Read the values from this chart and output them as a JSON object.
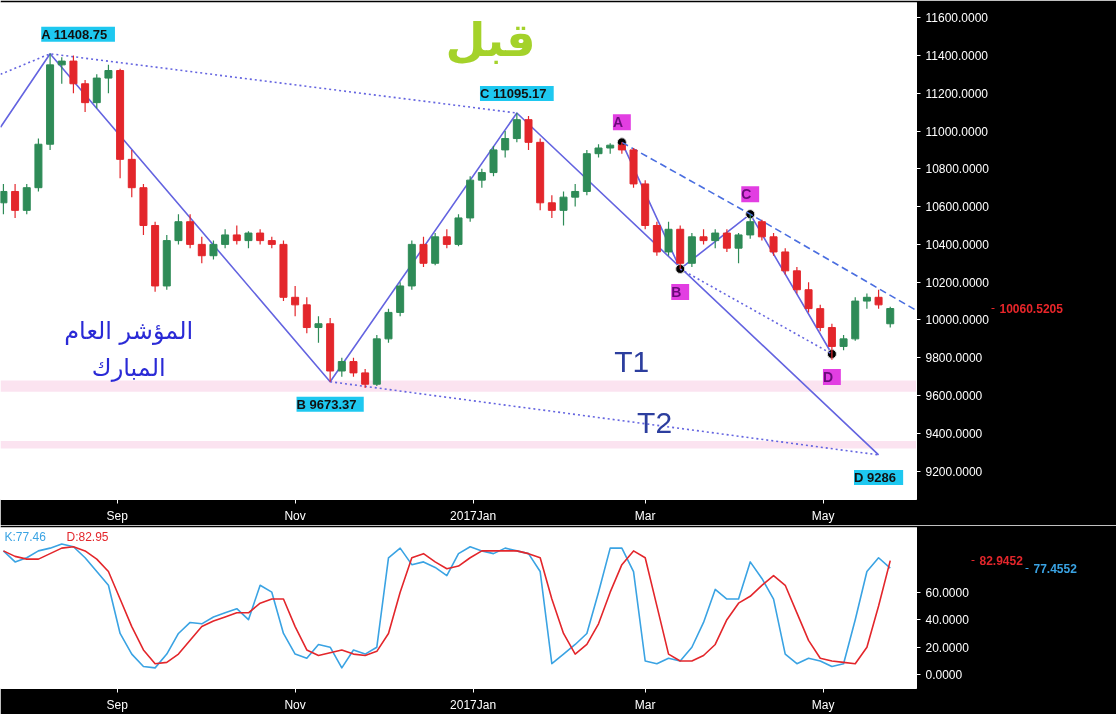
{
  "chart_data": [
    {
      "type": "candlestick",
      "x": [
        "2016-07-24",
        "2016-07-28",
        "2016-08-01",
        "2016-08-05",
        "2016-08-09",
        "2016-08-13",
        "2016-08-17",
        "2016-08-21",
        "2016-08-25",
        "2016-08-29",
        "2016-09-02",
        "2016-09-06",
        "2016-09-10",
        "2016-09-14",
        "2016-09-18",
        "2016-09-22",
        "2016-09-26",
        "2016-09-30",
        "2016-10-04",
        "2016-10-08",
        "2016-10-12",
        "2016-10-16",
        "2016-10-20",
        "2016-10-24",
        "2016-10-28",
        "2016-11-01",
        "2016-11-05",
        "2016-11-09",
        "2016-11-13",
        "2016-11-17",
        "2016-11-21",
        "2016-11-25",
        "2016-11-29",
        "2016-12-03",
        "2016-12-07",
        "2016-12-11",
        "2016-12-15",
        "2016-12-19",
        "2016-12-23",
        "2016-12-27",
        "2016-12-31",
        "2017-01-04",
        "2017-01-08",
        "2017-01-12",
        "2017-01-16",
        "2017-01-20",
        "2017-01-24",
        "2017-01-28",
        "2017-02-01",
        "2017-02-05",
        "2017-02-09",
        "2017-02-13",
        "2017-02-17",
        "2017-02-21",
        "2017-02-25",
        "2017-03-01",
        "2017-03-05",
        "2017-03-09",
        "2017-03-13",
        "2017-03-17",
        "2017-03-21",
        "2017-03-25",
        "2017-03-29",
        "2017-04-02",
        "2017-04-06",
        "2017-04-10",
        "2017-04-14",
        "2017-04-18",
        "2017-04-22",
        "2017-04-26",
        "2017-04-30",
        "2017-05-04",
        "2017-05-08",
        "2017-05-12",
        "2017-05-16",
        "2017-05-20",
        "2017-05-24"
      ],
      "ohlc": [
        [
          10620,
          10720,
          10560,
          10680
        ],
        [
          10680,
          10720,
          10540,
          10580
        ],
        [
          10580,
          10720,
          10560,
          10700
        ],
        [
          10700,
          10960,
          10680,
          10930
        ],
        [
          10930,
          11408.75,
          10900,
          11350
        ],
        [
          11350,
          11390,
          11250,
          11370
        ],
        [
          11370,
          11400,
          11200,
          11250
        ],
        [
          11250,
          11270,
          11100,
          11150
        ],
        [
          11150,
          11300,
          11120,
          11280
        ],
        [
          11280,
          11350,
          11200,
          11320
        ],
        [
          11320,
          11330,
          10750,
          10850
        ],
        [
          10850,
          10900,
          10650,
          10700
        ],
        [
          10700,
          10720,
          10450,
          10500
        ],
        [
          10500,
          10520,
          10150,
          10180
        ],
        [
          10180,
          10450,
          10160,
          10420
        ],
        [
          10420,
          10560,
          10400,
          10520
        ],
        [
          10520,
          10560,
          10380,
          10400
        ],
        [
          10400,
          10440,
          10300,
          10340
        ],
        [
          10340,
          10420,
          10320,
          10400
        ],
        [
          10400,
          10480,
          10380,
          10450
        ],
        [
          10450,
          10500,
          10400,
          10420
        ],
        [
          10420,
          10470,
          10380,
          10460
        ],
        [
          10460,
          10480,
          10400,
          10420
        ],
        [
          10420,
          10440,
          10380,
          10400
        ],
        [
          10400,
          10420,
          10100,
          10120
        ],
        [
          10120,
          10180,
          10020,
          10080
        ],
        [
          10080,
          10120,
          9930,
          9960
        ],
        [
          9960,
          10020,
          9880,
          9980
        ],
        [
          9980,
          10010,
          9673.37,
          9730
        ],
        [
          9730,
          9800,
          9700,
          9780
        ],
        [
          9780,
          9800,
          9700,
          9720
        ],
        [
          9720,
          9740,
          9640,
          9660
        ],
        [
          9660,
          9920,
          9650,
          9900
        ],
        [
          9900,
          10060,
          9880,
          10040
        ],
        [
          10040,
          10200,
          10020,
          10180
        ],
        [
          10180,
          10420,
          10160,
          10400
        ],
        [
          10400,
          10440,
          10280,
          10300
        ],
        [
          10300,
          10460,
          10290,
          10440
        ],
        [
          10440,
          10480,
          10380,
          10400
        ],
        [
          10400,
          10560,
          10390,
          10540
        ],
        [
          10540,
          10760,
          10520,
          10740
        ],
        [
          10740,
          10800,
          10700,
          10780
        ],
        [
          10780,
          10920,
          10760,
          10900
        ],
        [
          10900,
          11000,
          10860,
          10960
        ],
        [
          10960,
          11095.17,
          10940,
          11060
        ],
        [
          11060,
          11080,
          10900,
          10940
        ],
        [
          10940,
          10960,
          10580,
          10620
        ],
        [
          10620,
          10660,
          10540,
          10580
        ],
        [
          10580,
          10680,
          10500,
          10650
        ],
        [
          10650,
          10720,
          10600,
          10680
        ],
        [
          10680,
          10900,
          10660,
          10880
        ],
        [
          10880,
          10930,
          10860,
          10910
        ],
        [
          10910,
          10935,
          10880,
          10925
        ],
        [
          10925,
          10940,
          10880,
          10900
        ],
        [
          10900,
          10910,
          10700,
          10720
        ],
        [
          10720,
          10740,
          10480,
          10500
        ],
        [
          10500,
          10520,
          10340,
          10360
        ],
        [
          10360,
          10520,
          10340,
          10480
        ],
        [
          10480,
          10500,
          10270,
          10300
        ],
        [
          10300,
          10460,
          10280,
          10440
        ],
        [
          10440,
          10480,
          10400,
          10420
        ],
        [
          10420,
          10480,
          10380,
          10460
        ],
        [
          10460,
          10480,
          10360,
          10380
        ],
        [
          10380,
          10460,
          10300,
          10450
        ],
        [
          10450,
          10560,
          10430,
          10520
        ],
        [
          10520,
          10530,
          10420,
          10440
        ],
        [
          10440,
          10460,
          10340,
          10360
        ],
        [
          10360,
          10380,
          10240,
          10260
        ],
        [
          10260,
          10280,
          10140,
          10160
        ],
        [
          10160,
          10200,
          10040,
          10060
        ],
        [
          10060,
          10080,
          9940,
          9960
        ],
        [
          9960,
          9980,
          9790,
          9860
        ],
        [
          9860,
          9920,
          9840,
          9900
        ],
        [
          9900,
          10120,
          9890,
          10100
        ],
        [
          10100,
          10140,
          10060,
          10120
        ],
        [
          10120,
          10160,
          10060,
          10080
        ],
        [
          9980,
          10070,
          9960,
          10060.52
        ]
      ],
      "colors": [
        "#2e8b57",
        "#e3262b",
        "#2e8b57",
        "#2e8b57",
        "#2e8b57",
        "#2e8b57",
        "#e3262b",
        "#e3262b",
        "#2e8b57",
        "#2e8b57",
        "#e3262b",
        "#e3262b",
        "#e3262b",
        "#e3262b",
        "#2e8b57",
        "#2e8b57",
        "#e3262b",
        "#e3262b",
        "#2e8b57",
        "#2e8b57",
        "#e3262b",
        "#2e8b57",
        "#e3262b",
        "#e3262b",
        "#e3262b",
        "#e3262b",
        "#e3262b",
        "#2e8b57",
        "#e3262b",
        "#2e8b57",
        "#e3262b",
        "#e3262b",
        "#2e8b57",
        "#2e8b57",
        "#2e8b57",
        "#2e8b57",
        "#e3262b",
        "#2e8b57",
        "#e3262b",
        "#2e8b57",
        "#2e8b57",
        "#2e8b57",
        "#2e8b57",
        "#2e8b57",
        "#2e8b57",
        "#e3262b",
        "#e3262b",
        "#e3262b",
        "#2e8b57",
        "#2e8b57",
        "#2e8b57",
        "#2e8b57",
        "#2e8b57",
        "#e3262b",
        "#e3262b",
        "#e3262b",
        "#e3262b",
        "#2e8b57",
        "#e3262b",
        "#2e8b57",
        "#e3262b",
        "#2e8b57",
        "#e3262b",
        "#2e8b57",
        "#2e8b57",
        "#e3262b",
        "#e3262b",
        "#e3262b",
        "#e3262b",
        "#e3262b",
        "#e3262b",
        "#e3262b",
        "#2e8b57",
        "#2e8b57",
        "#2e8b57",
        "#e3262b",
        "#2e8b57"
      ],
      "series": [
        {
          "type": "line",
          "color": "#6464e0",
          "line_style": "solid",
          "x": [
            "2016-07-23",
            "2016-08-09",
            "2016-11-13",
            "2017-01-16",
            "2017-05-20"
          ],
          "values": [
            11020,
            11408.75,
            9673.37,
            11095.17,
            9286
          ]
        },
        {
          "type": "line",
          "color": "#6464e0",
          "line_style": "dotted",
          "x": [
            "2016-07-23",
            "2016-08-09",
            "2017-01-16"
          ],
          "values": [
            11300,
            11408.75,
            11095.17
          ]
        },
        {
          "type": "line",
          "color": "#6464e0",
          "line_style": "dotted",
          "x": [
            "2016-11-13",
            "2017-05-20"
          ],
          "values": [
            9673.37,
            9286
          ]
        },
        {
          "type": "line",
          "color": "#6464e0",
          "line_style": "solid",
          "marker": "circle",
          "x": [
            "2017-02-21",
            "2017-03-13",
            "2017-04-06",
            "2017-05-04"
          ],
          "values": [
            10940,
            10270,
            10560,
            9820
          ]
        },
        {
          "type": "line",
          "color": "#4a6ee0",
          "line_style": "dashed",
          "x": [
            "2017-02-21",
            "2017-04-06",
            "2017-06-02"
          ],
          "values": [
            10940,
            10560,
            10050
          ]
        },
        {
          "type": "line",
          "color": "#6464e0",
          "line_style": "dotted",
          "x": [
            "2017-03-13",
            "2017-05-04"
          ],
          "values": [
            10270,
            9820
          ]
        }
      ],
      "bands": [
        {
          "axis": "y",
          "from": 9620,
          "to": 9680,
          "label": "T1",
          "color": "#fbe0ee"
        },
        {
          "axis": "y",
          "from": 9320,
          "to": 9360,
          "label": "T2",
          "color": "#fbe0ee"
        }
      ],
      "annotations": [
        {
          "text": "A 11408.75",
          "x": "2016-08-09",
          "y": 11408.75
        },
        {
          "text": "B 9673.37",
          "x": "2016-11-13",
          "y": 9673.37
        },
        {
          "text": "C 11095.17",
          "x": "2017-01-16",
          "y": 11095.17
        },
        {
          "text": "D 9286",
          "x": "2017-05-20",
          "y": 9286
        },
        {
          "text": "A",
          "x": "2017-02-21",
          "y": 10940
        },
        {
          "text": "B",
          "x": "2017-03-13",
          "y": 10270
        },
        {
          "text": "C",
          "x": "2017-04-06",
          "y": 10560
        },
        {
          "text": "D",
          "x": "2017-05-04",
          "y": 9820
        },
        "قبل",
        "المؤشر العام",
        "المبارك",
        "10060.5205"
      ],
      "xlim": [
        "2016-07-23",
        "2017-06-02"
      ],
      "xticks": [
        {
          "value": "2016-09-01",
          "label": "Sep"
        },
        {
          "value": "2016-11-01",
          "label": "Nov"
        },
        {
          "value": "2017-01-01",
          "label": "2017Jan"
        },
        {
          "value": "2017-03-01",
          "label": "Mar"
        },
        {
          "value": "2017-05-01",
          "label": "May"
        }
      ],
      "ylim": [
        9050,
        11680
      ],
      "yticks": [
        {
          "value": 9200,
          "label": "9200.0000"
        },
        {
          "value": 9400,
          "label": "9400.0000"
        },
        {
          "value": 9600,
          "label": "9600.0000"
        },
        {
          "value": 9800,
          "label": "9800.0000"
        },
        {
          "value": 10000,
          "label": "10000.0000"
        },
        {
          "value": 10200,
          "label": "10200.0000"
        },
        {
          "value": 10400,
          "label": "10400.0000"
        },
        {
          "value": 10600,
          "label": "10600.0000"
        },
        {
          "value": 10800,
          "label": "10800.0000"
        },
        {
          "value": 11000,
          "label": "11000.0000"
        },
        {
          "value": 11200,
          "label": "11200.0000"
        },
        {
          "value": 11400,
          "label": "11400.0000"
        },
        {
          "value": 11600,
          "label": "11600.0000"
        }
      ]
    },
    {
      "type": "line",
      "x": [
        "2016-07-24",
        "2016-07-28",
        "2016-08-01",
        "2016-08-05",
        "2016-08-09",
        "2016-08-13",
        "2016-08-17",
        "2016-08-21",
        "2016-08-25",
        "2016-08-29",
        "2016-09-02",
        "2016-09-06",
        "2016-09-10",
        "2016-09-14",
        "2016-09-18",
        "2016-09-22",
        "2016-09-26",
        "2016-09-30",
        "2016-10-04",
        "2016-10-08",
        "2016-10-12",
        "2016-10-16",
        "2016-10-20",
        "2016-10-24",
        "2016-10-28",
        "2016-11-01",
        "2016-11-05",
        "2016-11-09",
        "2016-11-13",
        "2016-11-17",
        "2016-11-21",
        "2016-11-25",
        "2016-11-29",
        "2016-12-03",
        "2016-12-07",
        "2016-12-11",
        "2016-12-15",
        "2016-12-19",
        "2016-12-23",
        "2016-12-27",
        "2016-12-31",
        "2017-01-04",
        "2017-01-08",
        "2017-01-12",
        "2017-01-16",
        "2017-01-20",
        "2017-01-24",
        "2017-01-28",
        "2017-02-01",
        "2017-02-05",
        "2017-02-09",
        "2017-02-13",
        "2017-02-17",
        "2017-02-21",
        "2017-02-25",
        "2017-03-01",
        "2017-03-05",
        "2017-03-09",
        "2017-03-13",
        "2017-03-17",
        "2017-03-21",
        "2017-03-25",
        "2017-03-29",
        "2017-04-02",
        "2017-04-06",
        "2017-04-10",
        "2017-04-14",
        "2017-04-18",
        "2017-04-22",
        "2017-04-26",
        "2017-04-30",
        "2017-05-04",
        "2017-05-08",
        "2017-05-12",
        "2017-05-16",
        "2017-05-20",
        "2017-05-24"
      ],
      "series": [
        {
          "name": "K:77.46",
          "color": "#3aa3e3",
          "values": [
            90,
            82,
            85,
            90,
            92,
            95,
            93,
            85,
            75,
            65,
            30,
            15,
            6,
            5,
            15,
            30,
            38,
            37,
            42,
            45,
            48,
            40,
            65,
            60,
            30,
            15,
            12,
            22,
            20,
            5,
            18,
            15,
            20,
            85,
            92,
            80,
            82,
            78,
            72,
            88,
            93,
            90,
            88,
            92,
            90,
            88,
            75,
            8,
            15,
            22,
            30,
            60,
            92,
            92,
            75,
            10,
            8,
            12,
            10,
            20,
            38,
            62,
            55,
            55,
            82,
            70,
            55,
            15,
            8,
            12,
            10,
            6,
            8,
            40,
            75,
            85,
            77.4552
          ]
        },
        {
          "name": "D:82.95",
          "color": "#e3262b",
          "values": [
            90,
            86,
            84,
            84,
            88,
            92,
            93,
            90,
            84,
            75,
            55,
            35,
            18,
            8,
            9,
            15,
            25,
            35,
            39,
            42,
            45,
            45,
            52,
            55,
            55,
            35,
            18,
            14,
            16,
            18,
            15,
            14,
            17,
            30,
            60,
            85,
            88,
            82,
            77,
            79,
            85,
            90,
            90,
            90,
            90,
            88,
            85,
            55,
            30,
            15,
            22,
            37,
            60,
            80,
            90,
            85,
            50,
            15,
            10,
            10,
            14,
            22,
            40,
            52,
            57,
            65,
            72,
            65,
            45,
            25,
            12,
            10,
            9,
            8,
            20,
            50,
            82.9452
          ]
        }
      ],
      "legend": "top left",
      "annotations": [
        "82.9452",
        "77.4552"
      ],
      "xlim": [
        "2016-07-23",
        "2017-06-02"
      ],
      "xticks": [
        {
          "value": "2016-09-01",
          "label": "Sep"
        },
        {
          "value": "2016-11-01",
          "label": "Nov"
        },
        {
          "value": "2017-01-01",
          "label": "2017Jan"
        },
        {
          "value": "2017-03-01",
          "label": "Mar"
        },
        {
          "value": "2017-05-01",
          "label": "May"
        }
      ],
      "ylim": [
        -10,
        107
      ],
      "yticks": [
        {
          "value": 0,
          "label": "0.0000"
        },
        {
          "value": 20,
          "label": "20.0000"
        },
        {
          "value": 40,
          "label": "40.0000"
        },
        {
          "value": 60,
          "label": "60.0000"
        }
      ]
    }
  ]
}
